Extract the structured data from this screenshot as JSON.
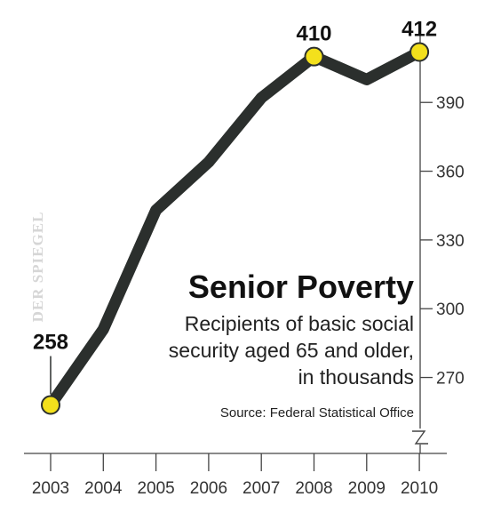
{
  "chart_data": {
    "type": "line",
    "title": "Senior Poverty",
    "subtitle_lines": [
      "Recipients of basic social",
      "security aged 65 and older,",
      "in thousands"
    ],
    "source": "Source: Federal Statistical Office",
    "watermark": "DER SPIEGEL",
    "x": [
      2003,
      2004,
      2005,
      2006,
      2007,
      2008,
      2009,
      2010
    ],
    "x_labels": [
      "2003",
      "2004",
      "2005",
      "2006",
      "2007",
      "2008",
      "2009",
      "2010"
    ],
    "series": [
      {
        "values": [
          258,
          291,
          343,
          364,
          392,
          410,
          400,
          412
        ]
      }
    ],
    "highlighted_points": [
      {
        "index": 0,
        "label": "258"
      },
      {
        "index": 5,
        "label": "410"
      },
      {
        "index": 7,
        "label": "412"
      }
    ],
    "y_ticks": [
      270,
      300,
      330,
      360,
      390
    ],
    "y_tick_labels": [
      "270",
      "300",
      "330",
      "360",
      "390"
    ],
    "axis_break": true,
    "ylim": [
      245,
      425
    ],
    "grid": false,
    "colors": {
      "line": "#2b2f2d",
      "marker_fill": "#f3e01c",
      "marker_stroke": "#2b2f2d",
      "axis": "#444444"
    }
  }
}
